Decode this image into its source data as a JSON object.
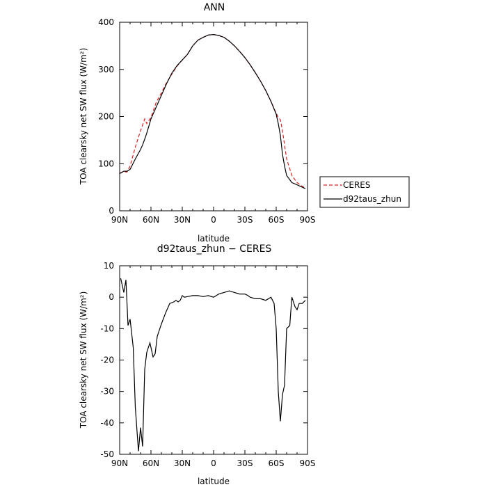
{
  "chart_data": [
    {
      "type": "line",
      "title": "ANN",
      "xlabel": "latitude",
      "ylabel": "TOA clearsky net SW flux (W/m²)",
      "ylim": [
        0,
        400
      ],
      "yticks": [
        0,
        100,
        200,
        300,
        400
      ],
      "xticks": [
        "90N",
        "60N",
        "30N",
        "0",
        "30S",
        "60S",
        "90S"
      ],
      "x": [
        90,
        86,
        83,
        80,
        75,
        70,
        68,
        66,
        64,
        60,
        55,
        50,
        45,
        40,
        35,
        30,
        25,
        20,
        15,
        10,
        5,
        0,
        -5,
        -10,
        -15,
        -20,
        -25,
        -30,
        -35,
        -40,
        -45,
        -50,
        -55,
        -60,
        -62,
        -64,
        -66,
        -68,
        -70,
        -75,
        -80,
        -85,
        -88
      ],
      "series": [
        {
          "name": "CERES",
          "color": "#e02020",
          "dash": "dashed",
          "values": [
            80,
            83,
            82,
            95,
            135,
            170,
            182,
            195,
            185,
            198,
            230,
            250,
            272,
            290,
            307,
            320,
            332,
            350,
            362,
            368,
            373,
            374,
            372,
            368,
            360,
            350,
            338,
            325,
            310,
            293,
            275,
            255,
            232,
            207,
            198,
            193,
            170,
            140,
            110,
            75,
            60,
            52,
            48
          ]
        },
        {
          "name": "d92taus_zhun",
          "color": "#000000",
          "dash": "solid",
          "values": [
            79,
            84,
            84,
            88,
            110,
            130,
            140,
            152,
            165,
            195,
            220,
            245,
            270,
            292,
            308,
            320,
            332,
            350,
            362,
            368,
            373,
            374,
            372,
            368,
            360,
            350,
            338,
            325,
            310,
            293,
            275,
            255,
            232,
            205,
            185,
            160,
            120,
            95,
            75,
            60,
            55,
            50,
            47
          ]
        }
      ],
      "legend": "right"
    },
    {
      "type": "line",
      "title": "d92taus_zhun − CERES",
      "xlabel": "latitude",
      "ylabel": "TOA clearsky net SW flux (W/m²)",
      "ylim": [
        -50,
        10
      ],
      "yticks": [
        -50,
        -40,
        -30,
        -20,
        -10,
        0,
        10
      ],
      "xticks": [
        "90N",
        "60N",
        "30N",
        "0",
        "30S",
        "60S",
        "90S"
      ],
      "x": [
        89,
        86,
        84,
        82,
        80,
        77,
        75,
        72,
        70,
        68,
        66,
        64,
        61,
        58,
        56,
        54,
        50,
        46,
        42,
        38,
        36,
        34,
        32,
        30,
        28,
        25,
        20,
        15,
        10,
        5,
        0,
        -5,
        -10,
        -15,
        -20,
        -25,
        -30,
        -33,
        -35,
        -40,
        -45,
        -50,
        -55,
        -58,
        -60,
        -62,
        -64,
        -66,
        -68,
        -70,
        -73,
        -75,
        -78,
        -80,
        -82,
        -85,
        -88
      ],
      "series": [
        {
          "name": "d92taus_zhun − CERES",
          "color": "#000000",
          "values": [
            6,
            1.5,
            5.5,
            -9,
            -7,
            -16,
            -35,
            -49,
            -41.5,
            -47.5,
            -23,
            -17.5,
            -14.5,
            -19,
            -18,
            -12.5,
            -8.5,
            -5,
            -2,
            -1.5,
            -1,
            -1.5,
            -1,
            0.5,
            0,
            0.2,
            0.5,
            0.5,
            0.2,
            0.5,
            0,
            1,
            1.5,
            2,
            1.5,
            1,
            1,
            0.5,
            0,
            -0.5,
            -0.5,
            -1,
            0,
            -2,
            -10,
            -30,
            -39.5,
            -31,
            -28,
            -10,
            -9,
            0,
            -3,
            -4,
            -2,
            -2,
            -1
          ]
        }
      ]
    }
  ]
}
